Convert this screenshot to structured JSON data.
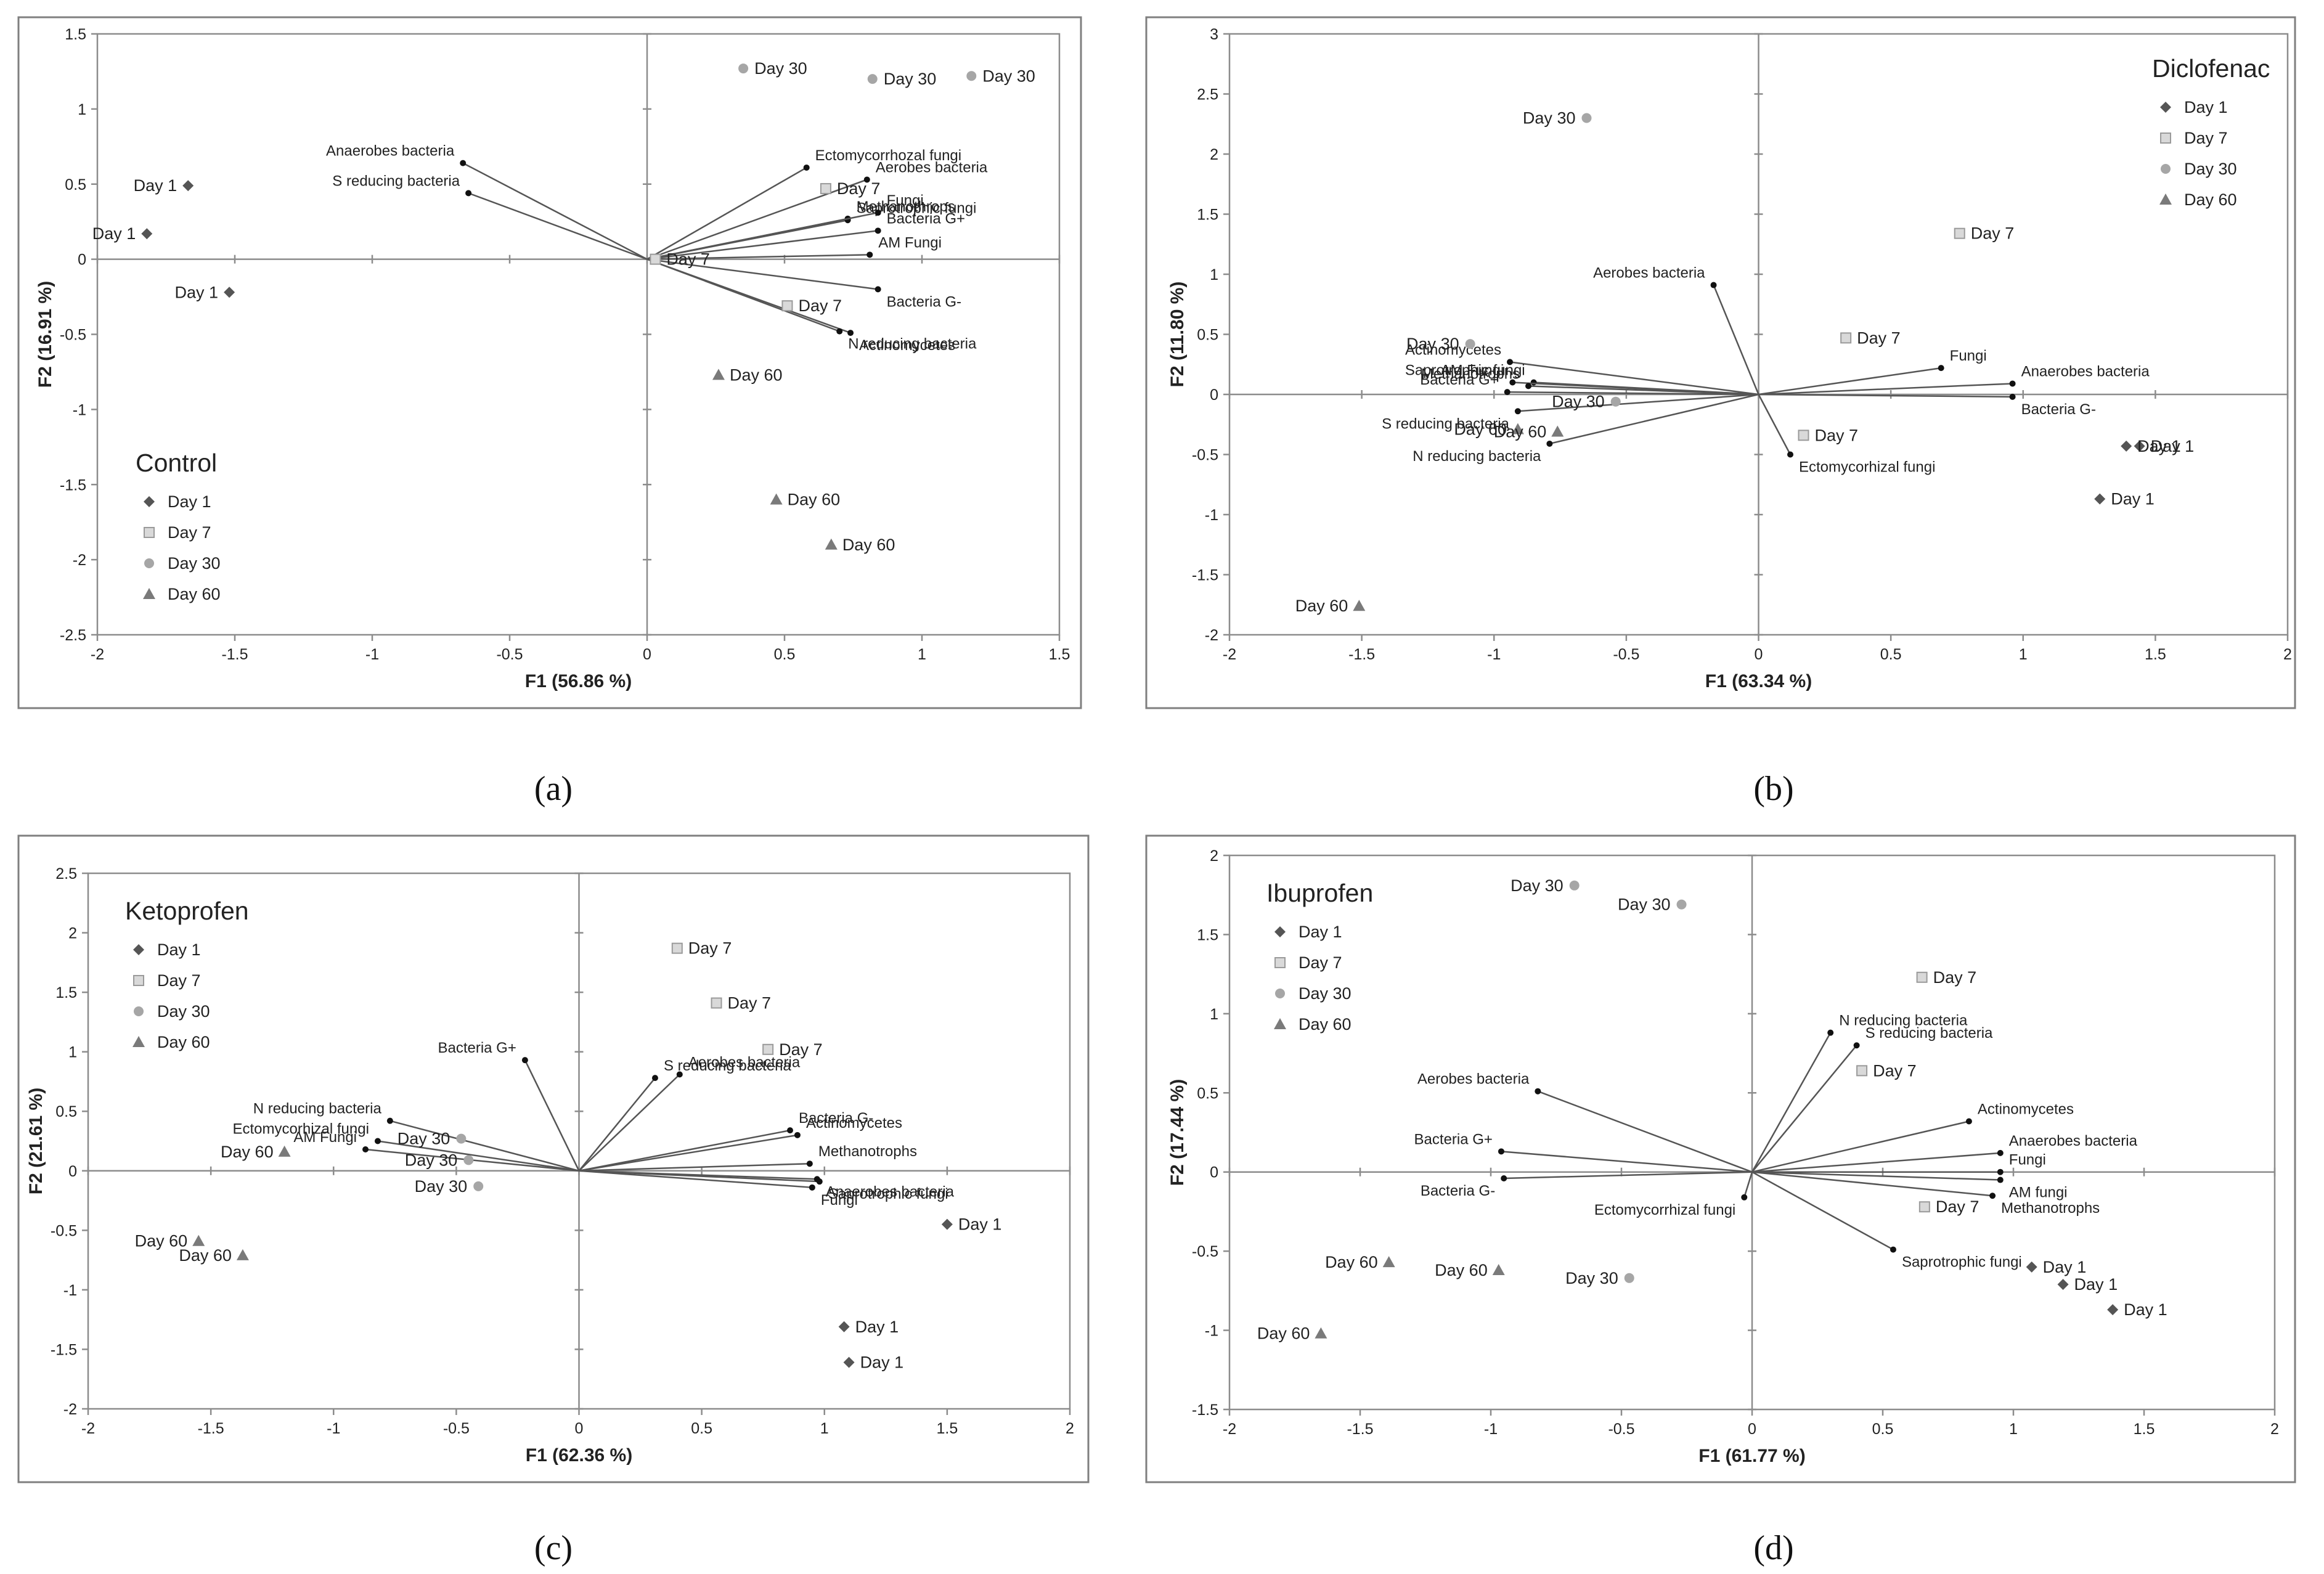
{
  "legend_labels": [
    "Day 1",
    "Day 7",
    "Day 30",
    "Day 60"
  ],
  "colors": {
    "day1": "#555555",
    "day7": "#9a9a9a",
    "day30": "#a6a6a6",
    "day60": "#7a7a7a"
  },
  "chart_data": [
    {
      "type": "scatter",
      "panel": "a",
      "caption": "(a)",
      "title": "Control",
      "xlabel": "F1 (56.86 %)",
      "ylabel": "F2 (16.91 %)",
      "xlim": [
        -2,
        1.5
      ],
      "ylim": [
        -2.5,
        1.5
      ],
      "xticks": [
        -2,
        -1.5,
        -1,
        -0.5,
        0,
        0.5,
        1,
        1.5
      ],
      "yticks": [
        -2.5,
        -2,
        -1.5,
        -1,
        -0.5,
        0,
        0.5,
        1,
        1.5
      ],
      "xtick_labels": [
        "-2",
        "-1.5",
        "-1",
        "-0.5",
        "0",
        "0.5",
        "1",
        "1.5"
      ],
      "ytick_labels": [
        "-2.5",
        "-2",
        "-1.5",
        "-1",
        "-0.5",
        "0",
        "0.5",
        "1",
        "1.5"
      ],
      "legend_position": "bottom-left",
      "variables": [
        {
          "name": "Anaerobes bacteria",
          "x": -0.67,
          "y": 0.64
        },
        {
          "name": "S reducing bacteria",
          "x": -0.65,
          "y": 0.44
        },
        {
          "name": "Ectomycorrhozal fungi",
          "x": 0.58,
          "y": 0.61
        },
        {
          "name": "Aerobes bacteria",
          "x": 0.8,
          "y": 0.53
        },
        {
          "name": "Saprotrophic fungi",
          "x": 0.73,
          "y": 0.26
        },
        {
          "name": "Methanothrops",
          "x": 0.73,
          "y": 0.27
        },
        {
          "name": "Fungi",
          "x": 0.84,
          "y": 0.31
        },
        {
          "name": "Bacteria G+",
          "x": 0.84,
          "y": 0.19
        },
        {
          "name": "AM Fungi",
          "x": 0.81,
          "y": 0.03
        },
        {
          "name": "Bacteria G-",
          "x": 0.84,
          "y": -0.2
        },
        {
          "name": "Actinomycetes",
          "x": 0.74,
          "y": -0.49
        },
        {
          "name": "N reducing bacteria",
          "x": 0.7,
          "y": -0.48
        }
      ],
      "observations": [
        {
          "label": "Day 1",
          "group": "day1",
          "x": -1.67,
          "y": 0.49
        },
        {
          "label": "Day 1",
          "group": "day1",
          "x": -1.82,
          "y": 0.17
        },
        {
          "label": "Day 1",
          "group": "day1",
          "x": -1.52,
          "y": -0.22
        },
        {
          "label": "Day 7",
          "group": "day7",
          "x": 0.65,
          "y": 0.47
        },
        {
          "label": "Day 7",
          "group": "day7",
          "x": 0.03,
          "y": 0.0
        },
        {
          "label": "Day 7",
          "group": "day7",
          "x": 0.51,
          "y": -0.31
        },
        {
          "label": "Day 30",
          "group": "day30",
          "x": 0.35,
          "y": 1.27
        },
        {
          "label": "Day 30",
          "group": "day30",
          "x": 0.82,
          "y": 1.2
        },
        {
          "label": "Day 30",
          "group": "day30",
          "x": 1.18,
          "y": 1.22
        },
        {
          "label": "Day 60",
          "group": "day60",
          "x": 0.26,
          "y": -0.77
        },
        {
          "label": "Day 60",
          "group": "day60",
          "x": 0.47,
          "y": -1.6
        },
        {
          "label": "Day 60",
          "group": "day60",
          "x": 0.67,
          "y": -1.9
        }
      ]
    },
    {
      "type": "scatter",
      "panel": "b",
      "caption": "(b)",
      "title": "Diclofenac",
      "xlabel": "F1 (63.34 %)",
      "ylabel": "F2 (11.80 %)",
      "xlim": [
        -2,
        2
      ],
      "ylim": [
        -2,
        3
      ],
      "xticks": [
        -2,
        -1.5,
        -1,
        -0.5,
        0,
        0.5,
        1,
        1.5,
        2
      ],
      "yticks": [
        -2,
        -1.5,
        -1,
        -0.5,
        0,
        0.5,
        1,
        1.5,
        2,
        2.5,
        3
      ],
      "xtick_labels": [
        "-2",
        "-1.5",
        "-1",
        "-0.5",
        "0",
        "0.5",
        "1",
        "1.5",
        "2"
      ],
      "ytick_labels": [
        "-2",
        "-1.5",
        "-1",
        "-0.5",
        "0",
        "0.5",
        "1",
        "1.5",
        "2",
        "2.5",
        "3"
      ],
      "legend_position": "top-right",
      "variables": [
        {
          "name": "Aerobes bacteria",
          "x": -0.17,
          "y": 0.91
        },
        {
          "name": "Actinomycetes",
          "x": -0.94,
          "y": 0.27
        },
        {
          "name": "Saprotrophic fungi",
          "x": -0.85,
          "y": 0.1
        },
        {
          "name": "AM Fungi",
          "x": -0.93,
          "y": 0.1
        },
        {
          "name": "Methanotrophs",
          "x": -0.87,
          "y": 0.07
        },
        {
          "name": "Bacteria G+",
          "x": -0.95,
          "y": 0.02
        },
        {
          "name": "S reducing bacteria",
          "x": -0.91,
          "y": -0.14
        },
        {
          "name": "N reducing bacteria",
          "x": -0.79,
          "y": -0.41
        },
        {
          "name": "Fungi",
          "x": 0.69,
          "y": 0.22
        },
        {
          "name": "Anaerobes bacteria",
          "x": 0.96,
          "y": 0.09
        },
        {
          "name": "Bacteria G-",
          "x": 0.96,
          "y": -0.02
        },
        {
          "name": "Ectomycorhizal fungi",
          "x": 0.12,
          "y": -0.5
        }
      ],
      "observations": [
        {
          "label": "Day 1",
          "group": "day1",
          "x": 1.44,
          "y": -0.43
        },
        {
          "label": "Day 1",
          "group": "day1",
          "x": 1.39,
          "y": -0.43
        },
        {
          "label": "Day 1",
          "group": "day1",
          "x": 1.29,
          "y": -0.87
        },
        {
          "label": "Day 7",
          "group": "day7",
          "x": 0.76,
          "y": 1.34
        },
        {
          "label": "Day 7",
          "group": "day7",
          "x": 0.33,
          "y": 0.47
        },
        {
          "label": "Day 7",
          "group": "day7",
          "x": 0.17,
          "y": -0.34
        },
        {
          "label": "Day 30",
          "group": "day30",
          "x": -0.65,
          "y": 2.3
        },
        {
          "label": "Day 30",
          "group": "day30",
          "x": -1.09,
          "y": 0.42
        },
        {
          "label": "Day 30",
          "group": "day30",
          "x": -0.54,
          "y": -0.06
        },
        {
          "label": "Day 60",
          "group": "day60",
          "x": -0.91,
          "y": -0.29
        },
        {
          "label": "Day 60",
          "group": "day60",
          "x": -0.76,
          "y": -0.31
        },
        {
          "label": "Day 60",
          "group": "day60",
          "x": -1.51,
          "y": -1.76
        }
      ]
    },
    {
      "type": "scatter",
      "panel": "c",
      "caption": "(c)",
      "title": "Ketoprofen",
      "xlabel": "F1 (62.36 %)",
      "ylabel": "F2 (21.61 %)",
      "xlim": [
        -2,
        2
      ],
      "ylim": [
        -2,
        2.5
      ],
      "xticks": [
        -2,
        -1.5,
        -1,
        -0.5,
        0,
        0.5,
        1,
        1.5,
        2
      ],
      "yticks": [
        -2,
        -1.5,
        -1,
        -0.5,
        0,
        0.5,
        1,
        1.5,
        2,
        2.5
      ],
      "xtick_labels": [
        "-2",
        "-1.5",
        "-1",
        "-0.5",
        "0",
        "0.5",
        "1",
        "1.5",
        "2"
      ],
      "ytick_labels": [
        "-2",
        "-1.5",
        "-1",
        "-0.5",
        "0",
        "0.5",
        "1",
        "1.5",
        "2",
        "2.5"
      ],
      "legend_position": "top-left",
      "variables": [
        {
          "name": "Bacteria G+",
          "x": -0.22,
          "y": 0.93
        },
        {
          "name": "S reducing bacteria",
          "x": 0.31,
          "y": 0.78
        },
        {
          "name": "Aerobes bacteria",
          "x": 0.41,
          "y": 0.81
        },
        {
          "name": "N reducing bacteria",
          "x": -0.77,
          "y": 0.42
        },
        {
          "name": "Ectomycorhizal fungi",
          "x": -0.82,
          "y": 0.25
        },
        {
          "name": "AM Fungi",
          "x": -0.87,
          "y": 0.18
        },
        {
          "name": "Bacteria G-",
          "x": 0.86,
          "y": 0.34
        },
        {
          "name": "Actinomycetes",
          "x": 0.89,
          "y": 0.3
        },
        {
          "name": "Methanotrophs",
          "x": 0.94,
          "y": 0.06
        },
        {
          "name": "Saprotrophic fungi",
          "x": 0.98,
          "y": -0.09
        },
        {
          "name": "Fungi",
          "x": 0.95,
          "y": -0.14
        },
        {
          "name": "Anaerobes bacteria",
          "x": 0.97,
          "y": -0.07
        }
      ],
      "observations": [
        {
          "label": "Day 1",
          "group": "day1",
          "x": 1.5,
          "y": -0.45
        },
        {
          "label": "Day 1",
          "group": "day1",
          "x": 1.08,
          "y": -1.31
        },
        {
          "label": "Day 1",
          "group": "day1",
          "x": 1.1,
          "y": -1.61
        },
        {
          "label": "Day 7",
          "group": "day7",
          "x": 0.4,
          "y": 1.87
        },
        {
          "label": "Day 7",
          "group": "day7",
          "x": 0.56,
          "y": 1.41
        },
        {
          "label": "Day 7",
          "group": "day7",
          "x": 0.77,
          "y": 1.02
        },
        {
          "label": "Day 30",
          "group": "day30",
          "x": -0.48,
          "y": 0.27
        },
        {
          "label": "Day 30",
          "group": "day30",
          "x": -0.45,
          "y": 0.09
        },
        {
          "label": "Day 30",
          "group": "day30",
          "x": -0.41,
          "y": -0.13
        },
        {
          "label": "Day 60",
          "group": "day60",
          "x": -1.2,
          "y": 0.16
        },
        {
          "label": "Day 60",
          "group": "day60",
          "x": -1.55,
          "y": -0.59
        },
        {
          "label": "Day 60",
          "group": "day60",
          "x": -1.37,
          "y": -0.71
        }
      ]
    },
    {
      "type": "scatter",
      "panel": "d",
      "caption": "(d)",
      "title": "Ibuprofen",
      "xlabel": "F1 (61.77 %)",
      "ylabel": "F2 (17.44 %)",
      "xlim": [
        -2,
        2
      ],
      "ylim": [
        -1.5,
        2
      ],
      "xticks": [
        -2,
        -1.5,
        -1,
        -0.5,
        0,
        0.5,
        1,
        1.5,
        2
      ],
      "yticks": [
        -1.5,
        -1,
        -0.5,
        0,
        0.5,
        1,
        1.5,
        2
      ],
      "xtick_labels": [
        "-2",
        "-1.5",
        "-1",
        "-0.5",
        "0",
        "0.5",
        "1",
        "1.5",
        "2"
      ],
      "ytick_labels": [
        "-1.5",
        "-1",
        "-0.5",
        "0",
        "0.5",
        "1",
        "1.5",
        "2"
      ],
      "legend_position": "top-left",
      "variables": [
        {
          "name": "N reducing bacteria",
          "x": 0.3,
          "y": 0.88
        },
        {
          "name": "S reducing bacteria",
          "x": 0.4,
          "y": 0.8
        },
        {
          "name": "Aerobes bacteria",
          "x": -0.82,
          "y": 0.51
        },
        {
          "name": "Actinomycetes",
          "x": 0.83,
          "y": 0.32
        },
        {
          "name": "Anaerobes bacteria",
          "x": 0.95,
          "y": 0.12
        },
        {
          "name": "Fungi",
          "x": 0.95,
          "y": 0.0
        },
        {
          "name": "AM fungi",
          "x": 0.95,
          "y": -0.05
        },
        {
          "name": "Methanotrophs",
          "x": 0.92,
          "y": -0.15
        },
        {
          "name": "Bacteria G+",
          "x": -0.96,
          "y": 0.13
        },
        {
          "name": "Bacteria G-",
          "x": -0.95,
          "y": -0.04
        },
        {
          "name": "Ectomycorrhizal fungi",
          "x": -0.03,
          "y": -0.16
        },
        {
          "name": "Saprotrophic fungi",
          "x": 0.54,
          "y": -0.49
        }
      ],
      "observations": [
        {
          "label": "Day 1",
          "group": "day1",
          "x": 1.07,
          "y": -0.6
        },
        {
          "label": "Day 1",
          "group": "day1",
          "x": 1.19,
          "y": -0.71
        },
        {
          "label": "Day 1",
          "group": "day1",
          "x": 1.38,
          "y": -0.87
        },
        {
          "label": "Day 7",
          "group": "day7",
          "x": 0.65,
          "y": 1.23
        },
        {
          "label": "Day 7",
          "group": "day7",
          "x": 0.42,
          "y": 0.64
        },
        {
          "label": "Day 7",
          "group": "day7",
          "x": 0.66,
          "y": -0.22
        },
        {
          "label": "Day 30",
          "group": "day30",
          "x": -0.68,
          "y": 1.81
        },
        {
          "label": "Day 30",
          "group": "day30",
          "x": -0.27,
          "y": 1.69
        },
        {
          "label": "Day 30",
          "group": "day30",
          "x": -0.47,
          "y": -0.67
        },
        {
          "label": "Day 60",
          "group": "day60",
          "x": -1.39,
          "y": -0.57
        },
        {
          "label": "Day 60",
          "group": "day60",
          "x": -0.97,
          "y": -0.62
        },
        {
          "label": "Day 60",
          "group": "day60",
          "x": -1.65,
          "y": -1.02
        }
      ]
    }
  ]
}
